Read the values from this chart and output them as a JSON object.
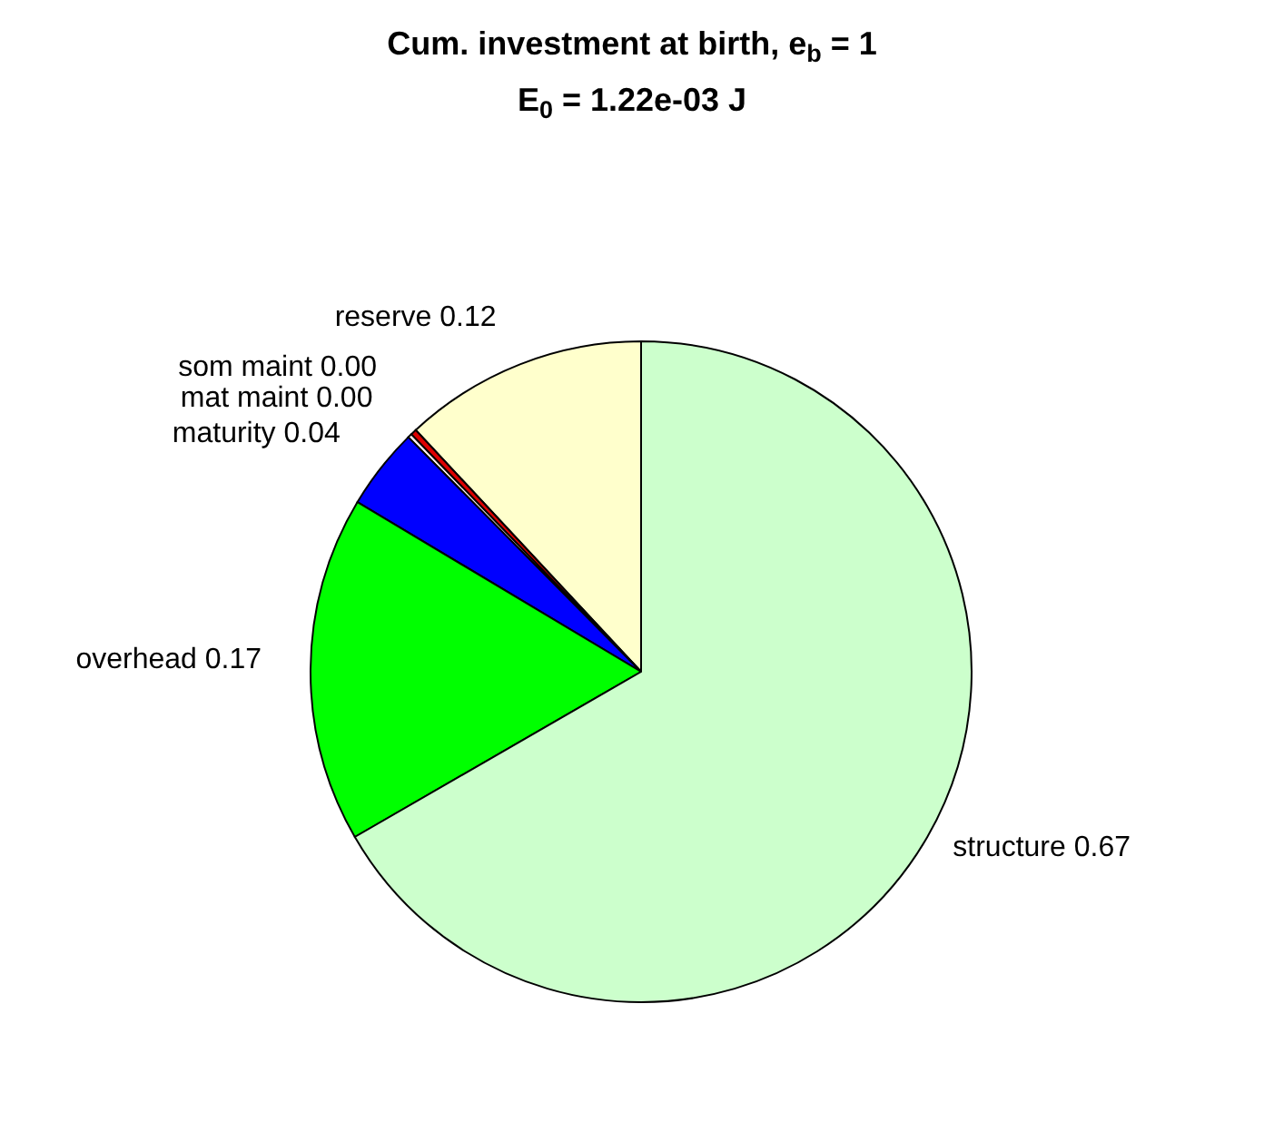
{
  "chart_data": {
    "type": "pie",
    "title": "Cum. investment at birth, e$_{b}$ = 1",
    "subtitle": "E$_{0}$ = 1.22e-03 J",
    "categories": [
      "reserve",
      "som maint",
      "mat maint",
      "maturity",
      "overhead",
      "structure"
    ],
    "values": [
      0.12,
      0.003,
      0.002,
      0.04,
      0.17,
      0.67
    ],
    "value_labels": [
      "0.12",
      "0.00",
      "0.00",
      "0.04",
      "0.17",
      "0.67"
    ],
    "colors": [
      "#ffffcc",
      "#dd0000",
      "#fff0f0",
      "#0000ff",
      "#00ff00",
      "#ccffcc"
    ]
  }
}
